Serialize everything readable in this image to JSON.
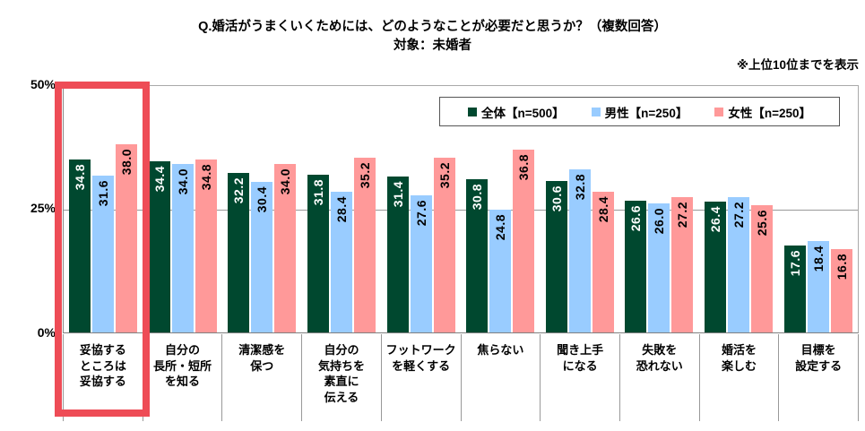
{
  "title": {
    "line1": "Q.婚活がうまくいくためには、どのようなことが必要だと思うか？（複数回答）",
    "line2": "対象：未婚者"
  },
  "note": "※上位10位までを表示",
  "y_axis": {
    "ticks": [
      "50%",
      "25%",
      "0%"
    ]
  },
  "colors": {
    "overall": "#00482f",
    "male": "#99ccff",
    "female": "#ff9999",
    "highlight": "#ee4c56",
    "grid": "#999999"
  },
  "chart_data": {
    "type": "bar",
    "title": "Q.婚活がうまくいくためには、どのようなことが必要だと思うか？（複数回答） 対象：未婚者",
    "note": "※上位10位までを表示",
    "ylabel": "",
    "xlabel": "",
    "ylim": [
      0,
      50
    ],
    "y_tick_labels": [
      "0%",
      "25%",
      "50%"
    ],
    "grid": true,
    "legend_position": "top-right",
    "highlight_category_index": 0,
    "categories": [
      "妥協する\nところは\n妥協する",
      "自分の\n長所・短所\nを知る",
      "清潔感を\n保つ",
      "自分の\n気持ちを\n素直に\n伝える",
      "フットワーク\nを軽くする",
      "焦らない",
      "聞き上手\nになる",
      "失敗を\n恐れない",
      "婚活を\n楽しむ",
      "目標を\n設定する"
    ],
    "series": [
      {
        "name": "全体【n=500】",
        "color": "#00482f",
        "label_color": "#ffffff",
        "values": [
          34.8,
          34.4,
          32.2,
          31.8,
          31.4,
          30.8,
          30.6,
          26.6,
          26.4,
          17.6
        ]
      },
      {
        "name": "男性【n=250】",
        "color": "#99ccff",
        "label_color": "#000000",
        "values": [
          31.6,
          34.0,
          30.4,
          28.4,
          27.6,
          24.8,
          32.8,
          26.0,
          27.2,
          18.4
        ]
      },
      {
        "name": "女性【n=250】",
        "color": "#ff9999",
        "label_color": "#000000",
        "values": [
          38.0,
          34.8,
          34.0,
          35.2,
          35.2,
          36.8,
          28.4,
          27.2,
          25.6,
          16.8
        ]
      }
    ]
  }
}
